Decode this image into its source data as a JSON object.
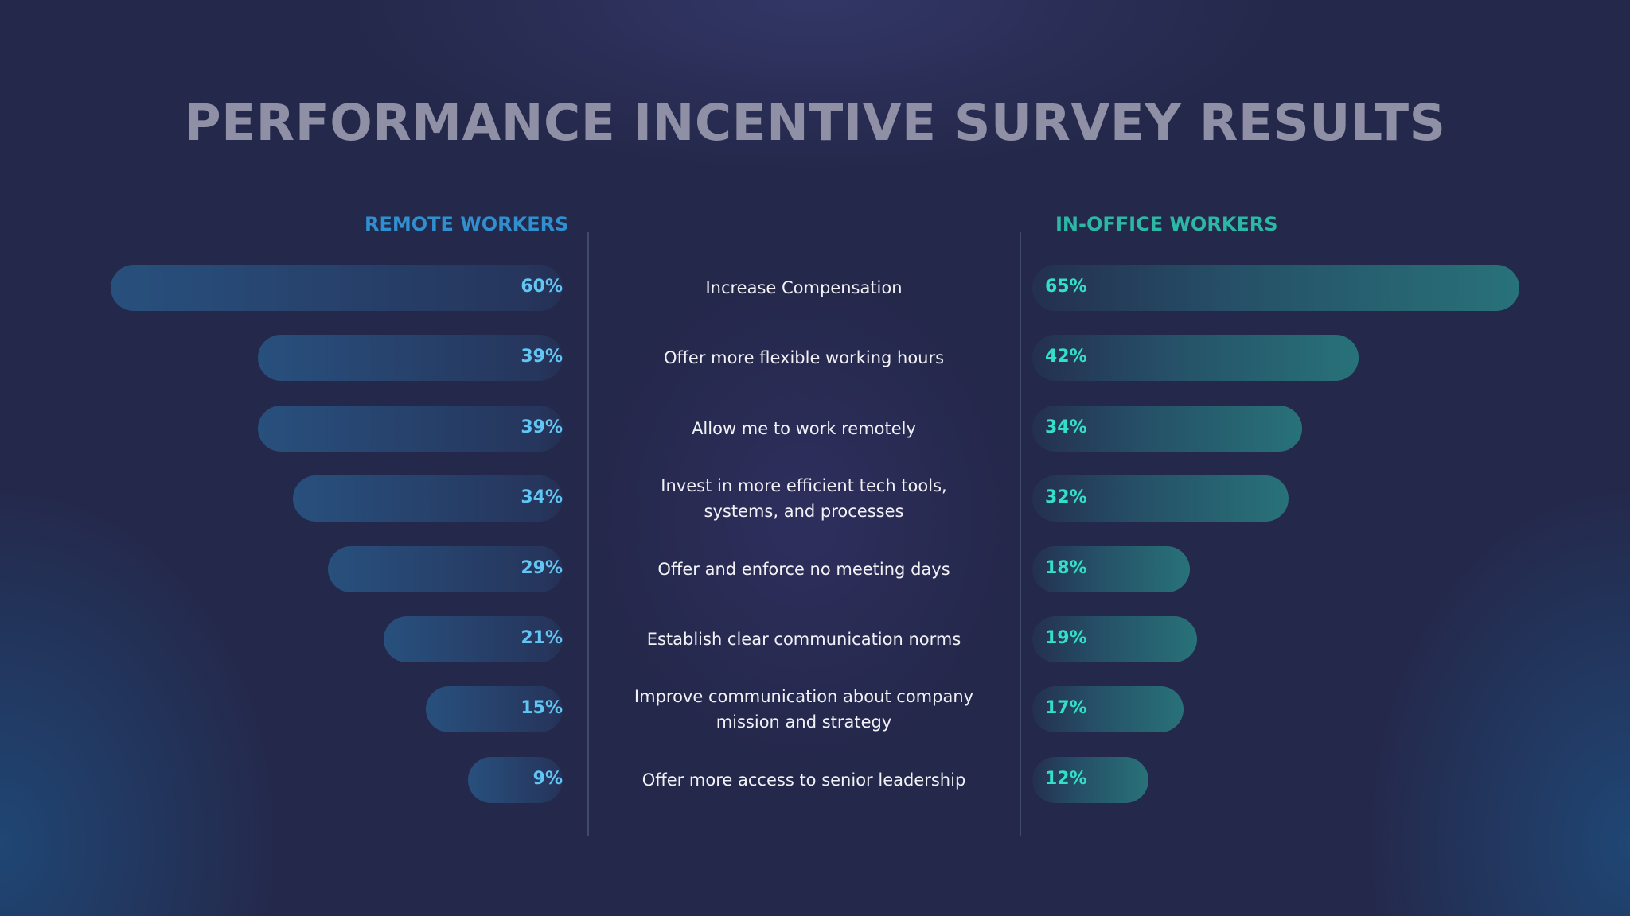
{
  "title": "PERFORMANCE INCENTIVE SURVEY RESULTS",
  "chart_data": {
    "type": "bar",
    "title": "PERFORMANCE INCENTIVE SURVEY RESULTS",
    "categories": [
      "Increase Compensation",
      "Offer more flexible working hours",
      "Allow me to work remotely",
      "Invest in more efficient tech tools, systems, and processes",
      "Offer and enforce no meeting days",
      "Establish  clear communication norms",
      "Improve communication about company mission and strategy",
      "Offer more access to senior leadership"
    ],
    "series": [
      {
        "name": "REMOTE WORKERS",
        "values": [
          60,
          39,
          39,
          34,
          29,
          21,
          15,
          9
        ],
        "labels": [
          "60%",
          "39%",
          "39%",
          "34%",
          "29%",
          "21%",
          "15%",
          "9%"
        ],
        "color": "#62c6f4"
      },
      {
        "name": "IN-OFFICE WORKERS",
        "values": [
          65,
          42,
          34,
          32,
          18,
          19,
          17,
          12
        ],
        "labels": [
          "65%",
          "42%",
          "34%",
          "32%",
          "18%",
          "19%",
          "17%",
          "12%"
        ],
        "color": "#33dfc7"
      }
    ],
    "orientation": "horizontal-diverging",
    "xlim": [
      0,
      100
    ]
  }
}
